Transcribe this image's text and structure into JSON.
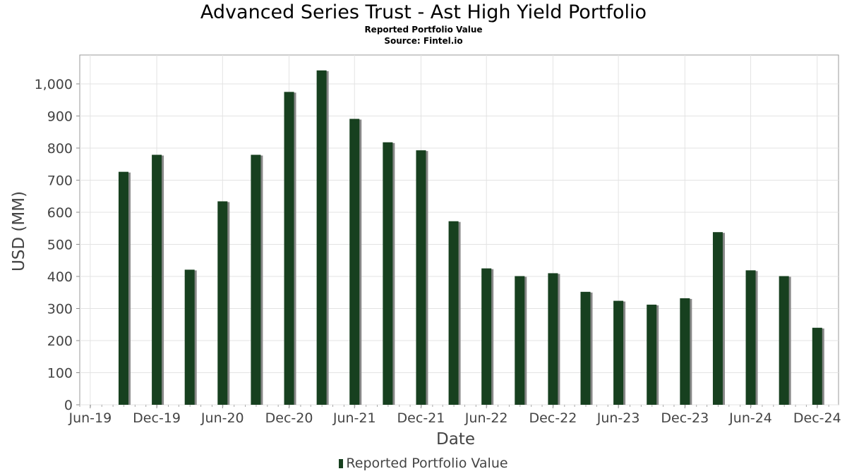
{
  "title": "Advanced Series Trust - Ast High Yield Portfolio",
  "subtitle": "Reported Portfolio Value",
  "source": "Source: Fintel.io",
  "chart_data": {
    "type": "bar",
    "title": "Advanced Series Trust - Ast High Yield Portfolio",
    "xlabel": "Date",
    "ylabel": "USD (MM)",
    "ylim": [
      0,
      1090
    ],
    "yticks": [
      0,
      100,
      200,
      300,
      400,
      500,
      600,
      700,
      800,
      900,
      1000
    ],
    "ytick_labels": [
      "0",
      "100",
      "200",
      "300",
      "400",
      "500",
      "600",
      "700",
      "800",
      "900",
      "1,000"
    ],
    "xticks": [
      "2019-06-30",
      "2019-12-31",
      "2020-06-30",
      "2020-12-31",
      "2021-06-30",
      "2021-12-31",
      "2022-06-30",
      "2022-12-31",
      "2023-06-30",
      "2023-12-31",
      "2024-06-30",
      "2024-12-31"
    ],
    "xtick_labels": [
      "Jun-19",
      "Dec-19",
      "Jun-20",
      "Dec-20",
      "Jun-21",
      "Dec-21",
      "Jun-22",
      "Dec-22",
      "Jun-23",
      "Dec-23",
      "Jun-24",
      "Dec-24"
    ],
    "x_range": [
      "2019-06-01",
      "2025-02-28"
    ],
    "grid": true,
    "legend_position": "bottom-center",
    "series": [
      {
        "name": "Reported Portfolio Value",
        "color": "#17401f",
        "x": [
          "2019-09-30",
          "2019-12-31",
          "2020-03-31",
          "2020-06-30",
          "2020-09-30",
          "2020-12-31",
          "2021-03-31",
          "2021-06-30",
          "2021-09-30",
          "2021-12-31",
          "2022-03-31",
          "2022-06-30",
          "2022-09-30",
          "2022-12-31",
          "2023-03-31",
          "2023-06-30",
          "2023-09-30",
          "2023-12-31",
          "2024-03-31",
          "2024-06-30",
          "2024-09-30",
          "2024-12-31"
        ],
        "values": [
          726,
          779,
          421,
          634,
          779,
          975,
          1042,
          891,
          818,
          793,
          572,
          425,
          401,
          410,
          352,
          324,
          312,
          332,
          538,
          419,
          401,
          240
        ]
      }
    ]
  }
}
